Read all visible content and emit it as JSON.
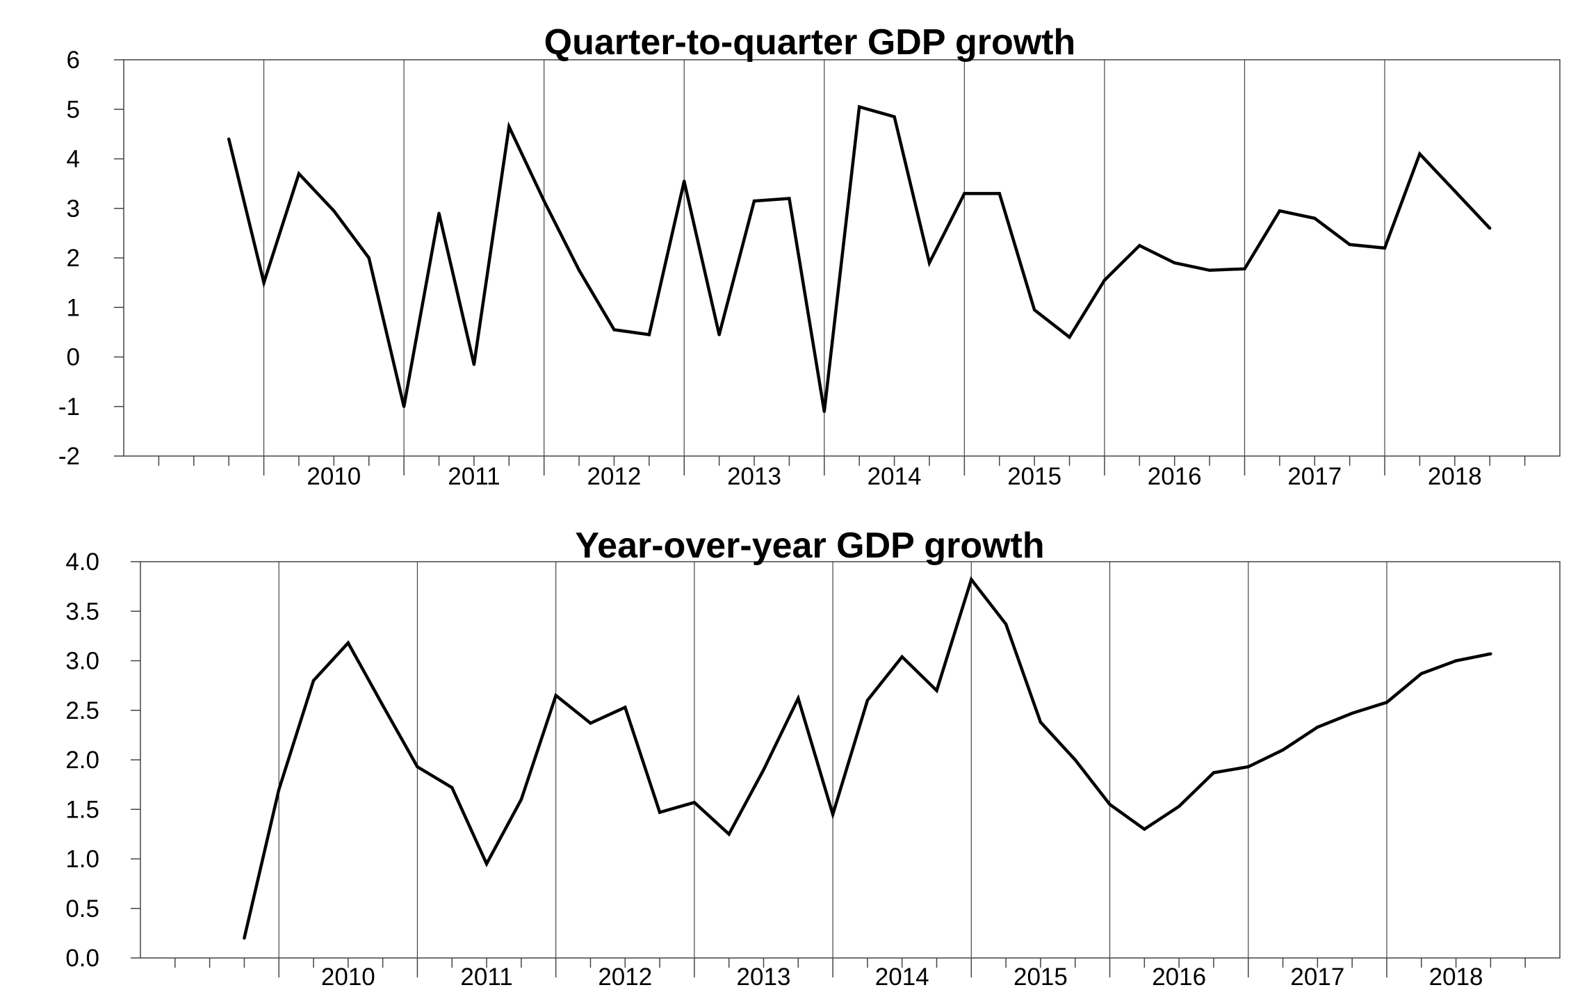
{
  "chart_data": [
    {
      "type": "line",
      "title": "Quarter-to-quarter GDP growth",
      "xlabel": "",
      "ylabel": "",
      "ylim": [
        -2,
        6
      ],
      "yticks": [
        -2,
        -1,
        0,
        1,
        2,
        3,
        4,
        5,
        6
      ],
      "ytick_labels": [
        "-2",
        "-1",
        "0",
        "1",
        "2",
        "3",
        "4",
        "5",
        "6"
      ],
      "year_labels": [
        "2010",
        "2011",
        "2012",
        "2013",
        "2014",
        "2015",
        "2016",
        "2017",
        "2018"
      ],
      "grid": "vertical lines at year boundaries",
      "x": [
        "2009Q4",
        "2010Q1",
        "2010Q2",
        "2010Q3",
        "2010Q4",
        "2011Q1",
        "2011Q2",
        "2011Q3",
        "2011Q4",
        "2012Q1",
        "2012Q2",
        "2012Q3",
        "2012Q4",
        "2013Q1",
        "2013Q2",
        "2013Q3",
        "2013Q4",
        "2014Q1",
        "2014Q2",
        "2014Q3",
        "2014Q4",
        "2015Q1",
        "2015Q2",
        "2015Q3",
        "2015Q4",
        "2016Q1",
        "2016Q2",
        "2016Q3",
        "2016Q4",
        "2017Q1",
        "2017Q2",
        "2017Q3",
        "2017Q4",
        "2018Q1",
        "2018Q2",
        "2018Q3",
        "2018Q4"
      ],
      "values": [
        4.4,
        1.5,
        3.7,
        2.95,
        2.0,
        -1.0,
        2.9,
        -0.15,
        4.65,
        3.15,
        1.75,
        0.55,
        0.45,
        3.55,
        0.45,
        3.15,
        3.2,
        -1.1,
        5.05,
        4.85,
        1.9,
        3.3,
        3.3,
        0.95,
        0.4,
        1.55,
        2.25,
        1.9,
        1.75,
        1.78,
        2.95,
        2.8,
        2.27,
        2.2,
        4.1,
        3.35,
        2.6
      ]
    },
    {
      "type": "line",
      "title": "Year-over-year GDP growth",
      "xlabel": "",
      "ylabel": "",
      "ylim": [
        0,
        4
      ],
      "yticks": [
        0,
        0.5,
        1,
        1.5,
        2,
        2.5,
        3,
        3.5,
        4
      ],
      "ytick_labels": [
        "0.0",
        "0.5",
        "1.0",
        "1.5",
        "2.0",
        "2.5",
        "3.0",
        "3.5",
        "4.0"
      ],
      "year_labels": [
        "2010",
        "2011",
        "2012",
        "2013",
        "2014",
        "2015",
        "2016",
        "2017",
        "2018"
      ],
      "grid": "vertical lines at year boundaries",
      "x": [
        "2009Q4",
        "2010Q1",
        "2010Q2",
        "2010Q3",
        "2010Q4",
        "2011Q1",
        "2011Q2",
        "2011Q3",
        "2011Q4",
        "2012Q1",
        "2012Q2",
        "2012Q3",
        "2012Q4",
        "2013Q1",
        "2013Q2",
        "2013Q3",
        "2013Q4",
        "2014Q1",
        "2014Q2",
        "2014Q3",
        "2014Q4",
        "2015Q1",
        "2015Q2",
        "2015Q3",
        "2015Q4",
        "2016Q1",
        "2016Q2",
        "2016Q3",
        "2016Q4",
        "2017Q1",
        "2017Q2",
        "2017Q3",
        "2017Q4",
        "2018Q1",
        "2018Q2",
        "2018Q3",
        "2018Q4"
      ],
      "values": [
        0.2,
        1.7,
        2.8,
        3.18,
        2.55,
        1.93,
        1.72,
        0.95,
        1.6,
        2.65,
        2.37,
        2.53,
        1.47,
        1.57,
        1.25,
        1.9,
        2.62,
        1.45,
        2.6,
        3.04,
        2.7,
        3.82,
        3.37,
        2.38,
        2.0,
        1.55,
        1.3,
        1.53,
        1.87,
        1.93,
        2.1,
        2.33,
        2.47,
        2.58,
        2.87,
        3.0,
        3.07
      ]
    }
  ]
}
